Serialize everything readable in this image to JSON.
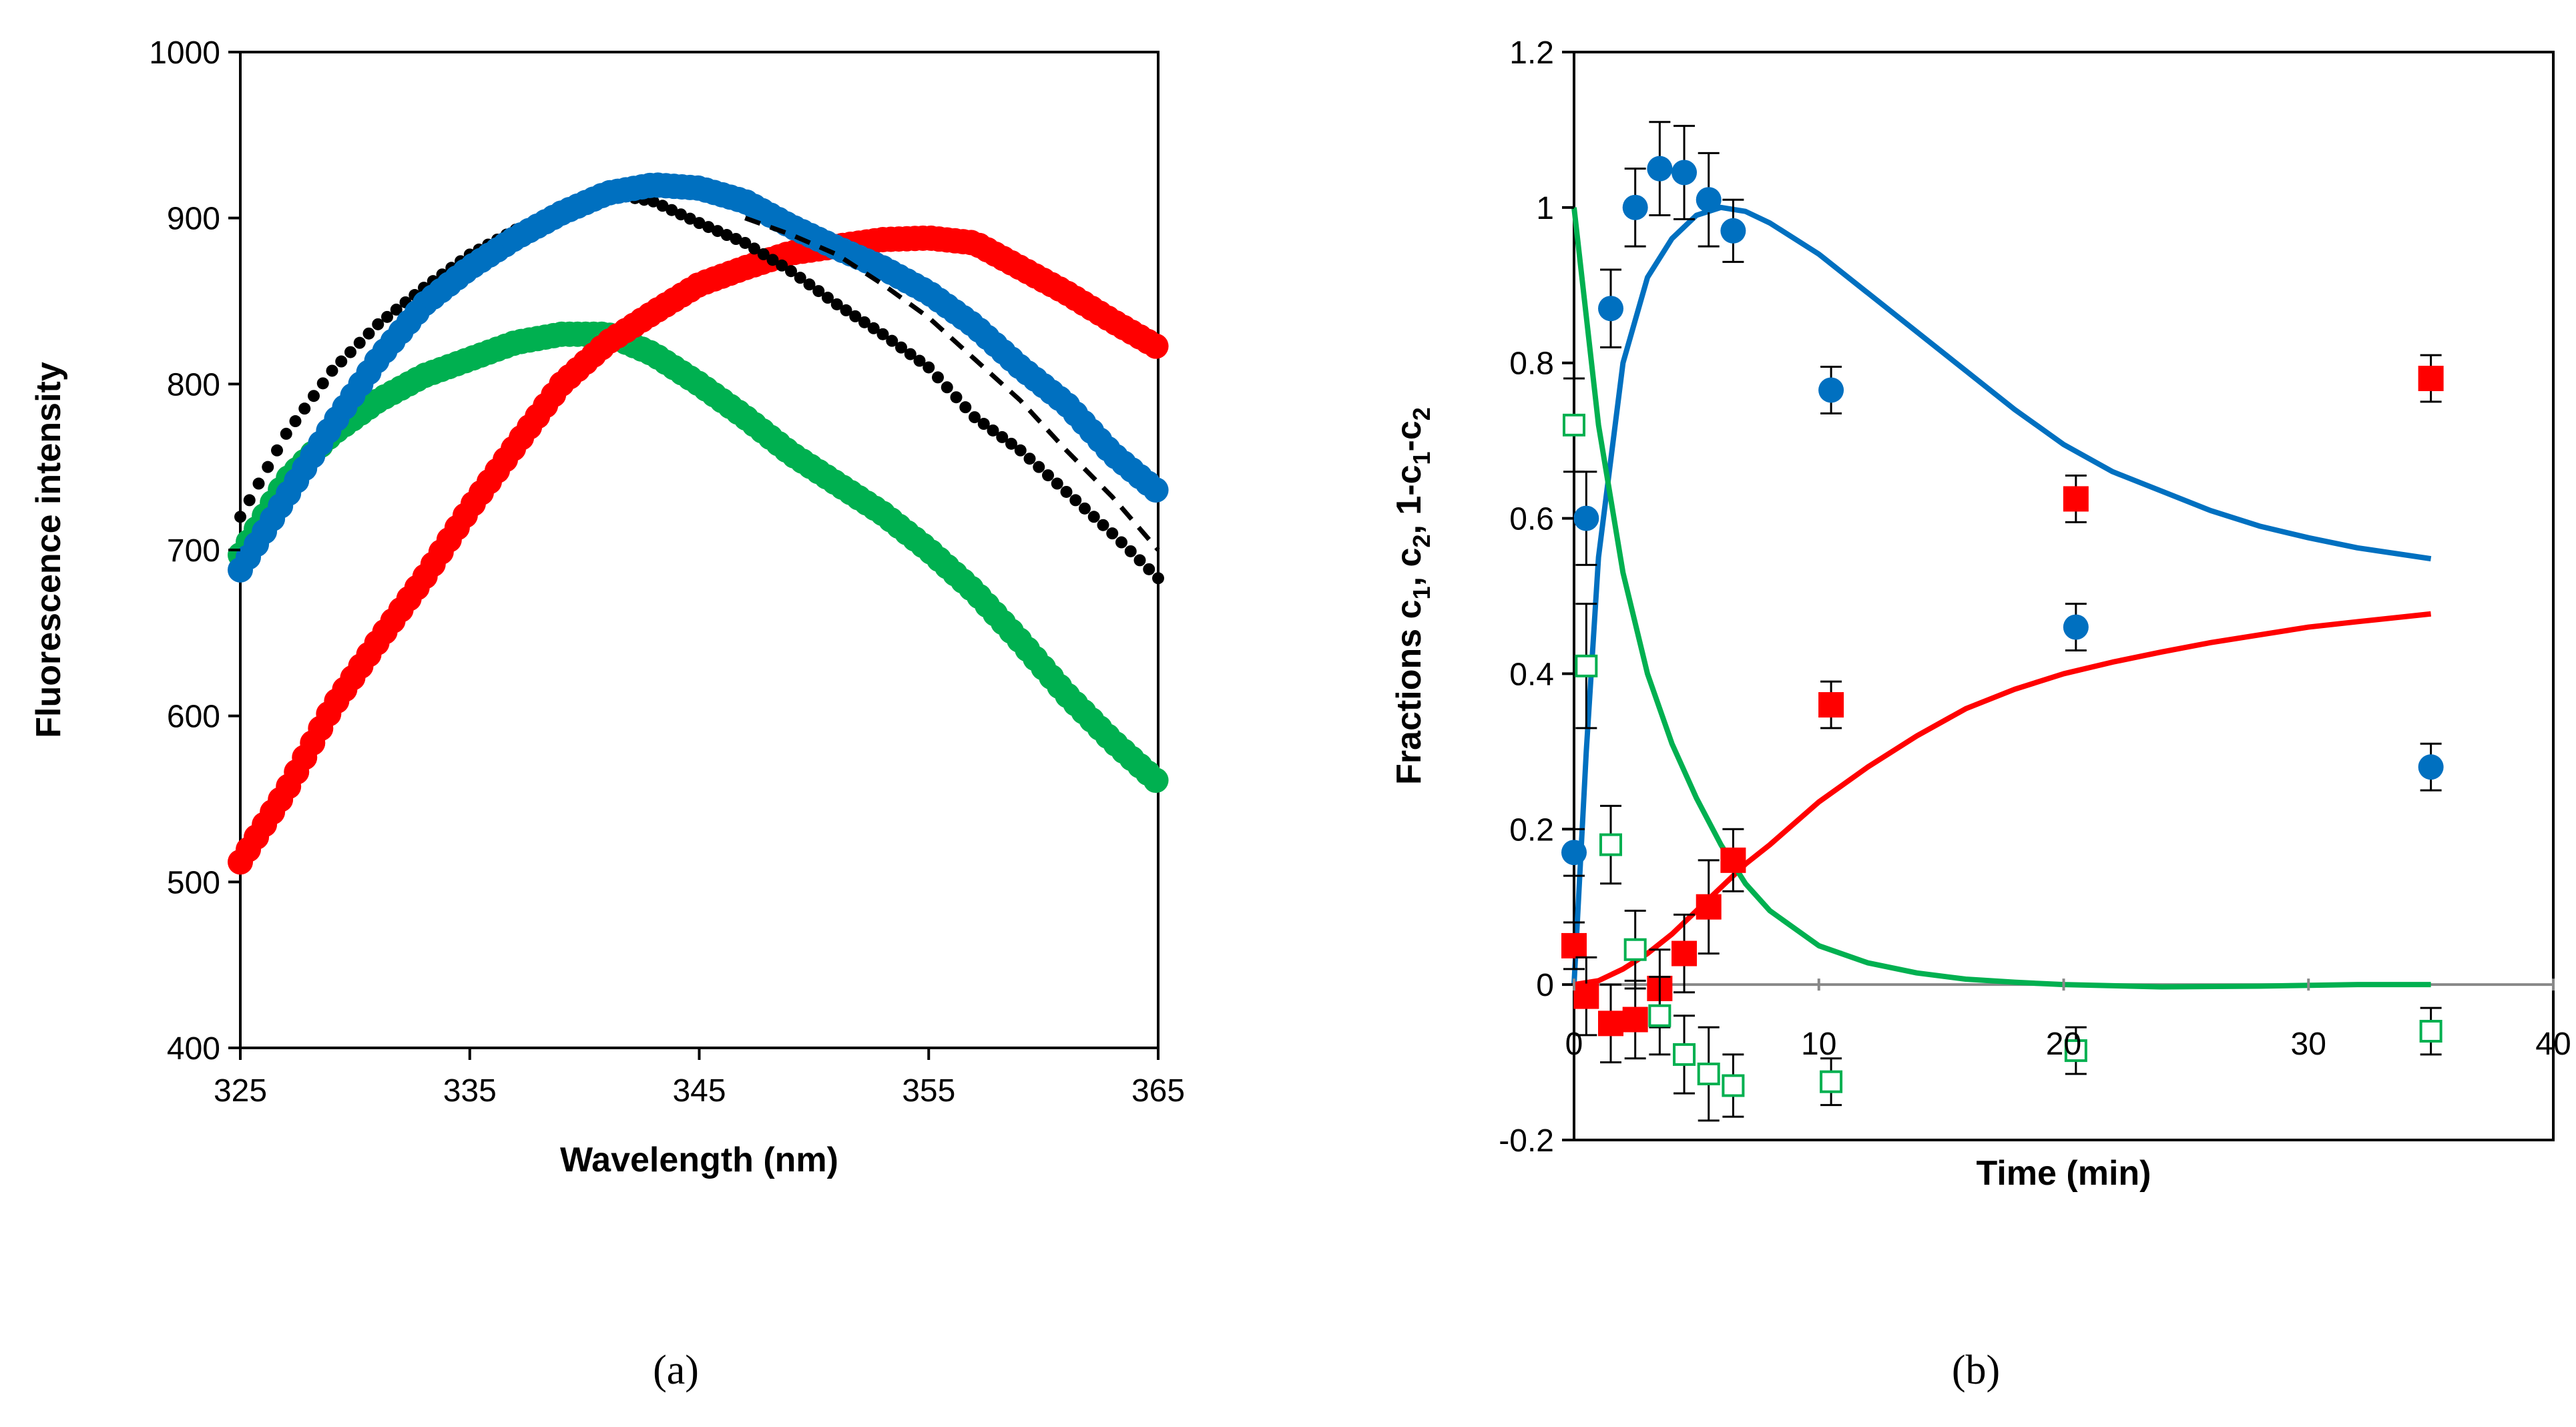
{
  "chart_data": [
    {
      "type": "scatter",
      "panel_label": "(a)",
      "xlabel": "Wavelength (nm)",
      "ylabel": "Fluorescence   intensity",
      "xlim": [
        325,
        365
      ],
      "ylim": [
        400,
        1000
      ],
      "xticks": [
        "325",
        "335",
        "345",
        "355",
        "365"
      ],
      "yticks": [
        "400",
        "500",
        "600",
        "700",
        "800",
        "900",
        "1000"
      ],
      "grid": false,
      "legend": "none",
      "series": [
        {
          "name": "red spectrum",
          "color": "#ff0000",
          "marker": "circle",
          "x": [
            325,
            327,
            329,
            331,
            333,
            335,
            337,
            339,
            341,
            343,
            345,
            347,
            349,
            351,
            353,
            355,
            357,
            359,
            361,
            363,
            365
          ],
          "y": [
            512,
            555,
            605,
            645,
            683,
            725,
            763,
            800,
            825,
            843,
            860,
            870,
            879,
            883,
            887,
            888,
            885,
            870,
            855,
            838,
            822
          ]
        },
        {
          "name": "green spectrum",
          "color": "#00b050",
          "marker": "circle",
          "x": [
            325,
            327,
            329,
            331,
            333,
            335,
            337,
            339,
            341,
            343,
            345,
            347,
            349,
            351,
            353,
            355,
            357,
            359,
            361,
            363,
            365
          ],
          "y": [
            697,
            742,
            770,
            790,
            805,
            815,
            825,
            830,
            830,
            818,
            800,
            780,
            758,
            740,
            722,
            700,
            675,
            645,
            613,
            585,
            560
          ]
        },
        {
          "name": "blue spectrum",
          "color": "#0070c0",
          "marker": "circle",
          "x": [
            325,
            327,
            329,
            331,
            333,
            335,
            337,
            339,
            341,
            343,
            345,
            347,
            349,
            351,
            353,
            355,
            357,
            359,
            361,
            363,
            365
          ],
          "y": [
            688,
            732,
            775,
            815,
            848,
            870,
            888,
            903,
            915,
            920,
            918,
            910,
            895,
            882,
            870,
            855,
            835,
            810,
            788,
            758,
            735
          ]
        },
        {
          "name": "black spectrum",
          "color": "#000000",
          "marker": "circle",
          "x": [
            325,
            327,
            329,
            331,
            333,
            335,
            337,
            339,
            341,
            343,
            345,
            347,
            349,
            351,
            353,
            355,
            357,
            359,
            361,
            363,
            365
          ],
          "y": [
            720,
            770,
            808,
            836,
            858,
            878,
            893,
            905,
            915,
            910,
            897,
            885,
            868,
            848,
            830,
            810,
            780,
            760,
            735,
            710,
            683
          ]
        },
        {
          "name": "black dashed fit",
          "color": "#000000",
          "style": "dashed",
          "x": [
            347,
            349,
            351,
            353,
            355,
            357,
            359,
            361,
            363,
            365
          ],
          "y": [
            900,
            890,
            878,
            860,
            840,
            815,
            790,
            760,
            732,
            700
          ]
        }
      ]
    },
    {
      "type": "scatter",
      "panel_label": "(b)",
      "xlabel": "Time (min)",
      "ylabel": "Fractions c1, c2, 1-c1-c2",
      "ylabel_parts": {
        "prefix": "Fractions c",
        "s1": "1",
        "mid1": ", c",
        "s2": "2",
        "mid2": ", 1-c",
        "s3": "1",
        "mid3": "-c",
        "s4": "2"
      },
      "xlim": [
        0,
        40
      ],
      "ylim": [
        -0.2,
        1.2
      ],
      "xticks": [
        "0",
        "10",
        "20",
        "30",
        "40"
      ],
      "yticks": [
        "-0.2",
        "0",
        "0.2",
        "0.4",
        "0.6",
        "0.8",
        "1",
        "1.2"
      ],
      "grid": false,
      "legend": "none",
      "points": [
        {
          "name": "c1 data (blue circles)",
          "color": "#0070c0",
          "marker": "circle",
          "x": [
            0,
            0.5,
            1.5,
            2.5,
            3.5,
            4.5,
            5.5,
            6.5,
            10.5,
            20.5,
            35
          ],
          "y": [
            0.17,
            0.6,
            0.87,
            1.0,
            1.05,
            1.045,
            1.01,
            0.97,
            0.765,
            0.46,
            0.28
          ],
          "err": [
            0.03,
            0.06,
            0.05,
            0.05,
            0.06,
            0.06,
            0.06,
            0.04,
            0.03,
            0.03,
            0.03
          ]
        },
        {
          "name": "c2 data (red squares)",
          "color": "#ff0000",
          "marker": "square",
          "x": [
            0,
            0.5,
            1.5,
            2.5,
            3.5,
            4.5,
            5.5,
            6.5,
            10.5,
            20.5,
            35
          ],
          "y": [
            0.05,
            -0.015,
            -0.05,
            -0.045,
            -0.005,
            0.04,
            0.1,
            0.16,
            0.36,
            0.625,
            0.78
          ],
          "err": [
            0.03,
            0.05,
            0.05,
            0.05,
            0.05,
            0.05,
            0.06,
            0.04,
            0.03,
            0.03,
            0.03
          ]
        },
        {
          "name": "1-c1-c2 data (green open squares)",
          "color": "#00b050",
          "marker": "open-square",
          "x": [
            0,
            0.5,
            1.5,
            2.5,
            3.5,
            4.5,
            5.5,
            6.5,
            10.5,
            20.5,
            35
          ],
          "y": [
            0.72,
            0.41,
            0.18,
            0.045,
            -0.04,
            -0.09,
            -0.115,
            -0.13,
            -0.125,
            -0.085,
            -0.06
          ],
          "err": [
            0.06,
            0.08,
            0.05,
            0.05,
            0.05,
            0.05,
            0.06,
            0.04,
            0.03,
            0.03,
            0.03
          ]
        }
      ],
      "curves": [
        {
          "name": "c1 fit",
          "color": "#0070c0",
          "x": [
            0,
            0.5,
            1,
            2,
            3,
            4,
            5,
            6,
            7,
            8,
            10,
            12,
            14,
            16,
            18,
            20,
            22,
            24,
            26,
            28,
            30,
            32,
            35
          ],
          "y": [
            0,
            0.3,
            0.55,
            0.8,
            0.91,
            0.96,
            0.99,
            1.0,
            0.995,
            0.98,
            0.94,
            0.89,
            0.84,
            0.79,
            0.74,
            0.695,
            0.66,
            0.635,
            0.61,
            0.59,
            0.575,
            0.562,
            0.548
          ]
        },
        {
          "name": "c2 fit",
          "color": "#ff0000",
          "x": [
            0,
            1,
            2,
            3,
            4,
            5,
            6,
            7,
            8,
            10,
            12,
            14,
            16,
            18,
            20,
            22,
            24,
            26,
            28,
            30,
            32,
            35
          ],
          "y": [
            0,
            0.005,
            0.02,
            0.04,
            0.065,
            0.095,
            0.125,
            0.155,
            0.18,
            0.235,
            0.28,
            0.32,
            0.355,
            0.38,
            0.4,
            0.415,
            0.428,
            0.44,
            0.45,
            0.46,
            0.467,
            0.477
          ]
        },
        {
          "name": "1-c1-c2 fit",
          "color": "#00b050",
          "x": [
            0,
            0.5,
            1,
            2,
            3,
            4,
            5,
            6,
            7,
            8,
            10,
            12,
            14,
            16,
            18,
            20,
            24,
            28,
            32,
            35
          ],
          "y": [
            1.0,
            0.86,
            0.72,
            0.53,
            0.4,
            0.31,
            0.24,
            0.18,
            0.13,
            0.095,
            0.05,
            0.028,
            0.015,
            0.007,
            0.003,
            0.0,
            -0.003,
            -0.002,
            0.0,
            0.0
          ]
        }
      ]
    }
  ]
}
